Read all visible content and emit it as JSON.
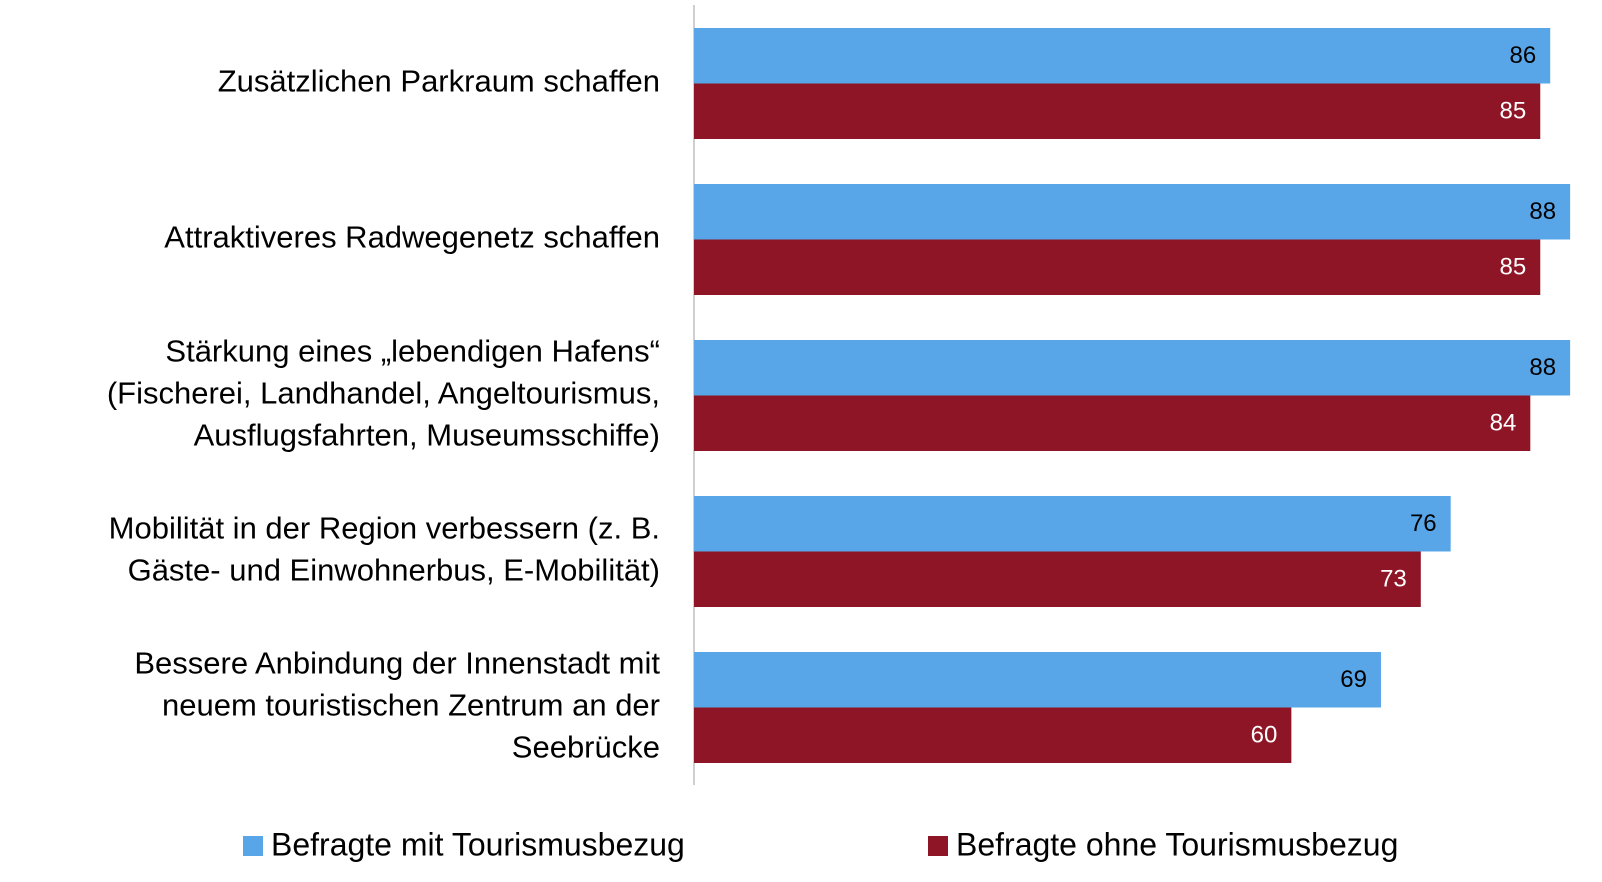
{
  "chart_data": {
    "type": "barh",
    "categories": [
      "Zusätzlichen Parkraum schaffen",
      "Attraktiveres Radwegenetz schaffen",
      "Stärkung eines „lebendigen Hafens“\n(Fischerei, Landhandel, Angeltourismus,\nAusflugsfahrten, Museumsschiffe)",
      "Mobilität in der Region verbessern (z. B.\nGäste- und Einwohnerbus, E-Mobilität)",
      "Bessere Anbindung der Innenstadt mit\nneuem touristischen Zentrum an der\nSeebrücke"
    ],
    "series": [
      {
        "name": "Befragte mit Tourismusbezug",
        "color": "#58a6e8",
        "values": [
          86,
          88,
          88,
          76,
          69
        ]
      },
      {
        "name": "Befragte ohne Tourismusbezug",
        "color": "#8e1525",
        "values": [
          85,
          85,
          84,
          73,
          60
        ]
      }
    ],
    "xlim": [
      0,
      91
    ]
  }
}
